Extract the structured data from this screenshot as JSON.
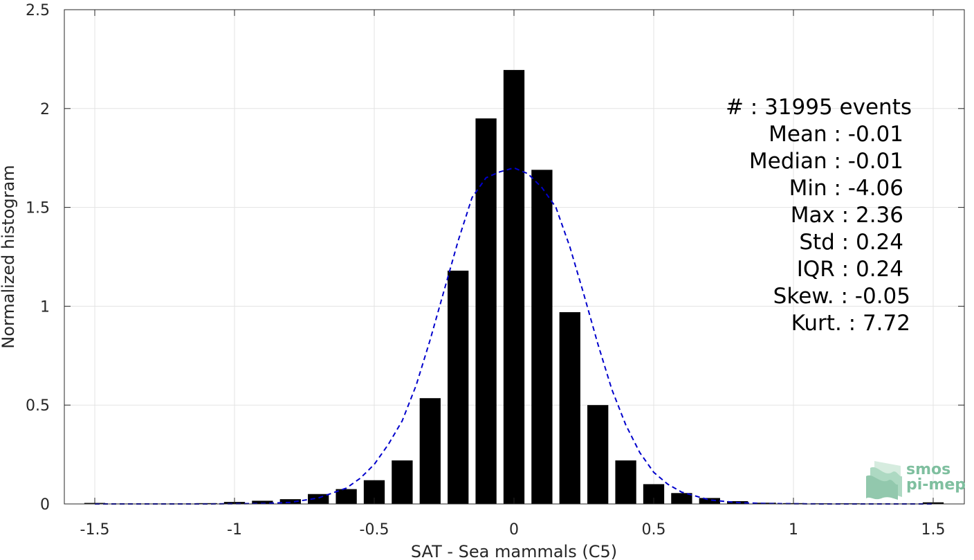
{
  "chart_data": {
    "type": "bar",
    "xlabel": "SAT - Sea mammals (C5)",
    "ylabel": "Normalized histogram",
    "xlim": [
      -1.5,
      1.5
    ],
    "ylim": [
      0,
      2.5
    ],
    "grid": true,
    "x_ticks": [
      "-1.5",
      "-1",
      "-0.5",
      "0",
      "0.5",
      "1",
      "1.5"
    ],
    "y_ticks": [
      "0",
      "0.5",
      "1",
      "1.5",
      "2",
      "2.5"
    ],
    "x_tick_values": [
      -1.5,
      -1,
      -0.5,
      0,
      0.5,
      1,
      1.5
    ],
    "y_tick_values": [
      0,
      0.5,
      1,
      1.5,
      2,
      2.5
    ],
    "bar_width": 0.075,
    "bars": {
      "x": [
        -1.5,
        -1.4,
        -1.3,
        -1.2,
        -1.1,
        -1.0,
        -0.9,
        -0.8,
        -0.7,
        -0.6,
        -0.5,
        -0.4,
        -0.3,
        -0.2,
        -0.1,
        0.0,
        0.1,
        0.2,
        0.3,
        0.4,
        0.5,
        0.6,
        0.7,
        0.8,
        0.9,
        1.0,
        1.1,
        1.2,
        1.3,
        1.4,
        1.5
      ],
      "values": [
        0.005,
        0.002,
        0.002,
        0.002,
        0.004,
        0.01,
        0.016,
        0.024,
        0.05,
        0.075,
        0.12,
        0.22,
        0.535,
        1.18,
        1.95,
        2.195,
        1.69,
        0.97,
        0.5,
        0.22,
        0.1,
        0.055,
        0.03,
        0.014,
        0.006,
        0.004,
        0.003,
        0.003,
        0.002,
        0.002,
        0.008
      ]
    },
    "fit_curve": {
      "style": "dashed",
      "color": "#0000cc",
      "x": [
        -1.5,
        -1.4,
        -1.3,
        -1.2,
        -1.1,
        -1.0,
        -0.9,
        -0.8,
        -0.7,
        -0.6,
        -0.55,
        -0.5,
        -0.45,
        -0.4,
        -0.35,
        -0.3,
        -0.25,
        -0.2,
        -0.15,
        -0.1,
        -0.05,
        0.0,
        0.05,
        0.1,
        0.15,
        0.2,
        0.25,
        0.3,
        0.35,
        0.4,
        0.45,
        0.5,
        0.55,
        0.6,
        0.7,
        0.8,
        0.9,
        1.0,
        1.1,
        1.2,
        1.3,
        1.4,
        1.5
      ],
      "y": [
        0.0,
        0.0,
        0.0,
        0.0,
        0.0,
        0.001,
        0.002,
        0.008,
        0.03,
        0.08,
        0.13,
        0.2,
        0.3,
        0.42,
        0.6,
        0.83,
        1.08,
        1.33,
        1.55,
        1.65,
        1.68,
        1.7,
        1.67,
        1.6,
        1.5,
        1.3,
        1.06,
        0.81,
        0.58,
        0.4,
        0.26,
        0.16,
        0.1,
        0.06,
        0.02,
        0.007,
        0.002,
        0.001,
        0.0,
        0.0,
        0.0,
        0.0,
        0.0
      ]
    },
    "stats": [
      {
        "label": "#  : 31995 events"
      },
      {
        "label": "Mean : -0.01"
      },
      {
        "label": "Median : -0.01"
      },
      {
        "label": "Min : -4.06"
      },
      {
        "label": "Max : 2.36"
      },
      {
        "label": "Std : 0.24"
      },
      {
        "label": "IQR : 0.24"
      },
      {
        "label": "Skew. : -0.05"
      },
      {
        "label": "Kurt. : 7.72"
      }
    ]
  },
  "logo": {
    "line1": "smos",
    "line2": "pi-mep",
    "color": "#7fbf9f"
  }
}
